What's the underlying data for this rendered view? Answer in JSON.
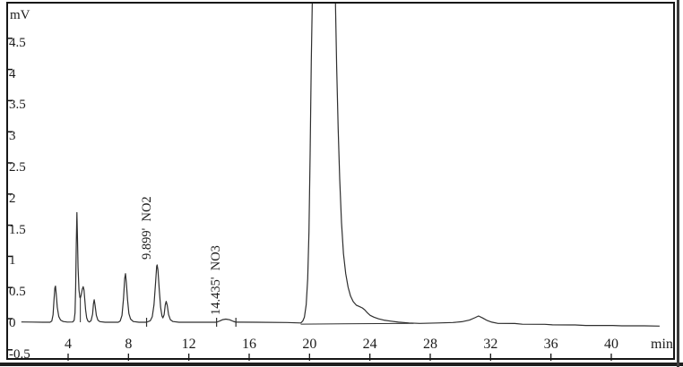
{
  "chart_data": {
    "type": "line",
    "title": "",
    "y_unit_label": "mV",
    "x_unit_label": "min",
    "xlabel": "min",
    "ylabel": "mV",
    "xlim": [
      0.9,
      44.2
    ],
    "ylim": [
      -0.58,
      5.1
    ],
    "grid": false,
    "legend": "none",
    "trace_color": "#2e2e2e",
    "x_ticks": [
      "4",
      "8",
      "12",
      "16",
      "20",
      "24",
      "28",
      "32",
      "36",
      "40"
    ],
    "y_ticks": [
      "4.5",
      "4",
      "3.5",
      "3",
      "2.5",
      "2",
      "1.5",
      "1",
      "0.5",
      "0",
      "-0.5"
    ],
    "peaks": [
      {
        "rt_min": 3.15,
        "height_mv": 0.58
      },
      {
        "rt_min": 4.58,
        "height_mv": 1.76
      },
      {
        "rt_min": 5.0,
        "height_mv": 0.57
      },
      {
        "rt_min": 5.73,
        "height_mv": 0.36
      },
      {
        "rt_min": 7.8,
        "height_mv": 0.78
      },
      {
        "rt_min": 9.899,
        "height_mv": 0.92,
        "label": "NO2"
      },
      {
        "rt_min": 10.5,
        "height_mv": 0.33
      },
      {
        "rt_min": 14.435,
        "height_mv": 0.05,
        "label": "NO3"
      },
      {
        "rt_min": 20.95,
        "height_mv": 5.1,
        "note": "off-scale, clipped at plot top"
      },
      {
        "rt_min": 31.2,
        "height_mv": 0.1
      }
    ],
    "annotations": [
      {
        "text": "9.899'  NO2",
        "x": 9.899,
        "y": 1.0
      },
      {
        "text": "14.435'  NO3",
        "x": 14.435,
        "y": 0.12
      }
    ],
    "trace": [
      [
        0.9,
        0.005
      ],
      [
        1.6,
        0.003
      ],
      [
        2.3,
        0.0
      ],
      [
        2.8,
        0.0
      ],
      [
        2.92,
        0.02
      ],
      [
        3.0,
        0.12
      ],
      [
        3.06,
        0.35
      ],
      [
        3.12,
        0.55
      ],
      [
        3.16,
        0.58
      ],
      [
        3.21,
        0.46
      ],
      [
        3.28,
        0.24
      ],
      [
        3.38,
        0.09
      ],
      [
        3.5,
        0.035
      ],
      [
        3.68,
        0.012
      ],
      [
        3.95,
        0.003
      ],
      [
        4.3,
        0.005
      ],
      [
        4.4,
        0.03
      ],
      [
        4.46,
        0.15
      ],
      [
        4.5,
        0.55
      ],
      [
        4.54,
        1.25
      ],
      [
        4.58,
        1.76
      ],
      [
        4.62,
        1.38
      ],
      [
        4.66,
        0.88
      ],
      [
        4.72,
        0.52
      ],
      [
        4.78,
        0.4
      ],
      [
        4.81,
        0.39
      ],
      [
        4.87,
        0.44
      ],
      [
        4.94,
        0.53
      ],
      [
        5.0,
        0.57
      ],
      [
        5.05,
        0.52
      ],
      [
        5.1,
        0.38
      ],
      [
        5.16,
        0.2
      ],
      [
        5.23,
        0.07
      ],
      [
        5.31,
        0.02
      ],
      [
        5.4,
        0.005
      ],
      [
        5.52,
        0.025
      ],
      [
        5.62,
        0.13
      ],
      [
        5.68,
        0.3
      ],
      [
        5.73,
        0.36
      ],
      [
        5.79,
        0.27
      ],
      [
        5.87,
        0.11
      ],
      [
        5.97,
        0.035
      ],
      [
        6.1,
        0.01
      ],
      [
        6.45,
        0.0
      ],
      [
        7.32,
        0.0
      ],
      [
        7.45,
        0.02
      ],
      [
        7.57,
        0.11
      ],
      [
        7.67,
        0.38
      ],
      [
        7.75,
        0.7
      ],
      [
        7.8,
        0.78
      ],
      [
        7.86,
        0.63
      ],
      [
        7.94,
        0.36
      ],
      [
        8.03,
        0.14
      ],
      [
        8.14,
        0.05
      ],
      [
        8.32,
        0.012
      ],
      [
        8.7,
        0.0
      ],
      [
        9.2,
        0.0
      ],
      [
        9.45,
        0.025
      ],
      [
        9.58,
        0.09
      ],
      [
        9.69,
        0.28
      ],
      [
        9.79,
        0.62
      ],
      [
        9.87,
        0.9
      ],
      [
        9.9,
        0.92
      ],
      [
        9.95,
        0.84
      ],
      [
        10.04,
        0.52
      ],
      [
        10.13,
        0.24
      ],
      [
        10.22,
        0.1
      ],
      [
        10.28,
        0.07
      ],
      [
        10.36,
        0.12
      ],
      [
        10.44,
        0.28
      ],
      [
        10.5,
        0.335
      ],
      [
        10.57,
        0.27
      ],
      [
        10.66,
        0.12
      ],
      [
        10.78,
        0.04
      ],
      [
        10.95,
        0.012
      ],
      [
        11.35,
        0.0
      ],
      [
        13.2,
        0.0
      ],
      [
        13.84,
        0.0
      ],
      [
        14.05,
        0.02
      ],
      [
        14.25,
        0.042
      ],
      [
        14.45,
        0.05
      ],
      [
        14.7,
        0.04
      ],
      [
        14.95,
        0.015
      ],
      [
        15.12,
        0.002
      ],
      [
        16.5,
        0.0
      ],
      [
        18.5,
        -0.005
      ],
      [
        19.42,
        -0.012
      ],
      [
        19.55,
        0.02
      ],
      [
        19.66,
        0.08
      ],
      [
        19.78,
        0.28
      ],
      [
        19.88,
        0.7
      ],
      [
        19.96,
        1.45
      ],
      [
        20.04,
        2.7
      ],
      [
        20.12,
        4.2
      ],
      [
        20.2,
        5.4
      ],
      [
        21.7,
        5.4
      ],
      [
        21.8,
        4.1
      ],
      [
        21.9,
        3.1
      ],
      [
        22.0,
        2.3
      ],
      [
        22.12,
        1.6
      ],
      [
        22.25,
        1.1
      ],
      [
        22.4,
        0.78
      ],
      [
        22.56,
        0.56
      ],
      [
        22.72,
        0.42
      ],
      [
        22.9,
        0.33
      ],
      [
        23.1,
        0.275
      ],
      [
        23.32,
        0.25
      ],
      [
        23.5,
        0.23
      ],
      [
        23.66,
        0.2
      ],
      [
        23.84,
        0.15
      ],
      [
        24.02,
        0.11
      ],
      [
        24.28,
        0.08
      ],
      [
        24.58,
        0.055
      ],
      [
        24.92,
        0.035
      ],
      [
        25.35,
        0.018
      ],
      [
        25.9,
        0.002
      ],
      [
        26.6,
        -0.012
      ],
      [
        27.3,
        -0.018
      ],
      [
        28.5,
        -0.012
      ],
      [
        29.5,
        -0.004
      ],
      [
        30.1,
        0.008
      ],
      [
        30.6,
        0.035
      ],
      [
        30.95,
        0.072
      ],
      [
        31.2,
        0.1
      ],
      [
        31.48,
        0.068
      ],
      [
        31.78,
        0.028
      ],
      [
        32.08,
        0.002
      ],
      [
        32.5,
        -0.018
      ],
      [
        33.6,
        -0.02
      ],
      [
        34.1,
        -0.032
      ],
      [
        35.6,
        -0.033
      ],
      [
        36.1,
        -0.042
      ],
      [
        37.6,
        -0.043
      ],
      [
        38.3,
        -0.052
      ],
      [
        40.1,
        -0.052
      ],
      [
        40.7,
        -0.058
      ],
      [
        42.2,
        -0.058
      ],
      [
        43.2,
        -0.062
      ]
    ],
    "integration_baseline": [
      [
        19.42,
        -0.03
      ],
      [
        26.9,
        -0.018
      ]
    ],
    "drop_lines": [
      {
        "x": 4.81,
        "y1": 0.39,
        "y2": 0.0
      }
    ],
    "baseline_marks": [
      9.2,
      13.84,
      15.12
    ]
  }
}
